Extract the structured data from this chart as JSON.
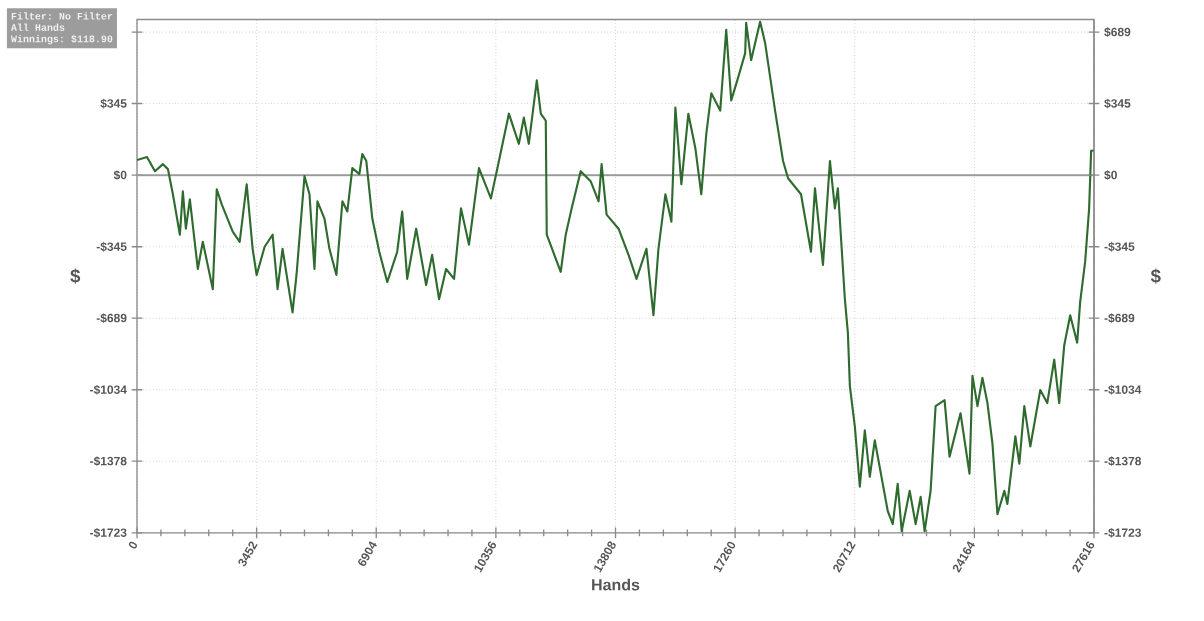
{
  "chart_data": {
    "type": "line",
    "xlabel": "Hands",
    "ylabel": "$",
    "y2label": "$",
    "annotations": [
      "Filter: No Filter",
      "All Hands",
      "Winnings: $118.90"
    ],
    "color": "#2f6b2f",
    "grid": true,
    "xlim": [
      0,
      27616
    ],
    "xticks": [
      0,
      3452,
      6904,
      10356,
      13808,
      17260,
      20712,
      24164,
      27616
    ],
    "ylim": [
      -1723,
      750
    ],
    "yticks": [
      {
        "value": -1723,
        "label": "-$1723"
      },
      {
        "value": -1378,
        "label": "-$1378"
      },
      {
        "value": -1034,
        "label": "-$1034"
      },
      {
        "value": -689,
        "label": "-$689"
      },
      {
        "value": -345,
        "label": "-$345"
      },
      {
        "value": 0,
        "label": "$0"
      },
      {
        "value": 345,
        "label": "$345"
      },
      {
        "value": 689,
        "label": null
      }
    ],
    "y2lim": [
      -1723,
      750
    ],
    "y2ticks": [
      {
        "value": -1723,
        "label": "-$1723"
      },
      {
        "value": -1378,
        "label": "-$1378"
      },
      {
        "value": -1034,
        "label": "-$1034"
      },
      {
        "value": -689,
        "label": "-$689"
      },
      {
        "value": -345,
        "label": "-$345"
      },
      {
        "value": 0,
        "label": "$0"
      },
      {
        "value": 345,
        "label": "$345"
      },
      {
        "value": 689,
        "label": "$689"
      }
    ],
    "ref_lines": [
      {
        "axis": "y",
        "value": 0,
        "color": "#9a9a9a"
      }
    ],
    "x": [
      0,
      288,
      518,
      748,
      892,
      1036,
      1237,
      1323,
      1410,
      1525,
      1755,
      1899,
      2187,
      2302,
      2445,
      2762,
      2963,
      3165,
      3337,
      3452,
      3683,
      3913,
      4057,
      4200,
      4488,
      4603,
      4834,
      4977,
      5121,
      5207,
      5409,
      5553,
      5754,
      5927,
      6070,
      6214,
      6416,
      6502,
      6617,
      6790,
      6991,
      7221,
      7509,
      7653,
      7797,
      8056,
      8343,
      8516,
      8717,
      8919,
      9149,
      9350,
      9580,
      9868,
      10213,
      10444,
      10731,
      11019,
      11163,
      11306,
      11537,
      11652,
      11796,
      11824,
      12227,
      12371,
      12544,
      12803,
      13090,
      13320,
      13407,
      13551,
      13896,
      14184,
      14414,
      14701,
      14903,
      15047,
      15248,
      15421,
      15536,
      15708,
      15910,
      16111,
      16284,
      16428,
      16572,
      16830,
      17003,
      17147,
      17348,
      17550,
      17578,
      17722,
      17981,
      18125,
      18413,
      18643,
      18787,
      19161,
      19449,
      19564,
      19794,
      19996,
      20139,
      20225,
      20427,
      20513,
      20571,
      20714,
      20858,
      21002,
      21146,
      21290,
      21664,
      21808,
      21951,
      22067,
      22297,
      22469,
      22613,
      22728,
      22901,
      23045,
      23304,
      23447,
      23764,
      24023,
      24109,
      24253,
      24397,
      24541,
      24685,
      24829,
      25030,
      25116,
      25346,
      25461,
      25605,
      25778,
      26066,
      26267,
      26468,
      26612,
      26756,
      26929,
      27130,
      27216,
      27360,
      27475,
      27533,
      27616
    ],
    "values": [
      73,
      87,
      19,
      53,
      29,
      -92,
      -287,
      -78,
      -258,
      -117,
      -452,
      -321,
      -549,
      -68,
      -141,
      -272,
      -321,
      -44,
      -355,
      -481,
      -345,
      -287,
      -549,
      -355,
      -661,
      -481,
      -5,
      -92,
      -452,
      -126,
      -209,
      -355,
      -481,
      -126,
      -175,
      34,
      5,
      102,
      68,
      -209,
      -369,
      -515,
      -369,
      -175,
      -500,
      -258,
      -530,
      -384,
      -598,
      -452,
      -500,
      -160,
      -335,
      34,
      -112,
      68,
      296,
      151,
      277,
      151,
      457,
      296,
      262,
      -287,
      -466,
      -287,
      -160,
      19,
      -29,
      -126,
      53,
      -190,
      -258,
      -384,
      -500,
      -355,
      -675,
      -355,
      -92,
      -224,
      326,
      -44,
      296,
      131,
      -92,
      199,
      394,
      311,
      700,
      360,
      471,
      588,
      734,
      554,
      739,
      637,
      311,
      68,
      -15,
      -92,
      -369,
      -63,
      -432,
      68,
      -160,
      -63,
      -598,
      -758,
      -1016,
      -1210,
      -1501,
      -1229,
      -1453,
      -1278,
      -1618,
      -1681,
      -1487,
      -1715,
      -1521,
      -1681,
      -1550,
      -1715,
      -1521,
      -1113,
      -1084,
      -1356,
      -1147,
      -1438,
      -967,
      -1113,
      -977,
      -1098,
      -1292,
      -1633,
      -1521,
      -1584,
      -1258,
      -1390,
      -1113,
      -1307,
      -1035,
      -1098,
      -889,
      -1098,
      -821,
      -675,
      -807,
      -612,
      -418,
      -160,
      117,
      119
    ]
  }
}
